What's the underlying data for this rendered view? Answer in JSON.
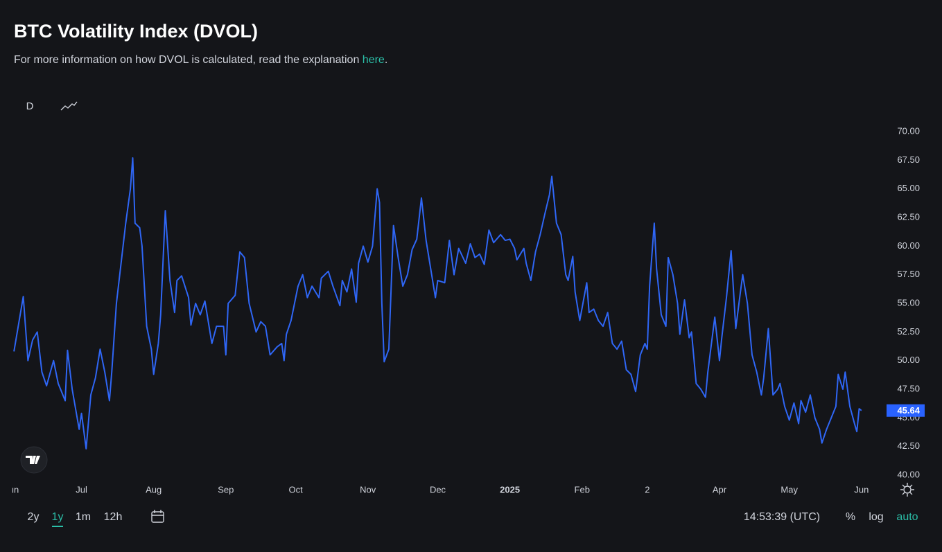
{
  "header": {
    "title": "BTC Volatility Index (DVOL)",
    "subtitle": "For more information on how DVOL is calculated, read the explanation",
    "link": "here",
    "end": "."
  },
  "toolbar": {
    "interval": "D"
  },
  "chart_data": {
    "type": "line",
    "color": "#2f66f5",
    "x": [
      1,
      5,
      7,
      9,
      11,
      13,
      15,
      18,
      20,
      23,
      24,
      26,
      29,
      30,
      32,
      34,
      36,
      38,
      40,
      42,
      43,
      45,
      47,
      49,
      51,
      52,
      53,
      55,
      56,
      58,
      60,
      61,
      63,
      64,
      66,
      68,
      70,
      71,
      73,
      76,
      77,
      79,
      81,
      83,
      86,
      88,
      91,
      92,
      93,
      96,
      98,
      100,
      102,
      105,
      107,
      109,
      111,
      114,
      116,
      117,
      118,
      120,
      123,
      125,
      127,
      129,
      132,
      133,
      136,
      138,
      141,
      142,
      144,
      146,
      148,
      149,
      151,
      153,
      155,
      157,
      158,
      159,
      160,
      162,
      164,
      166,
      168,
      170,
      172,
      174,
      176,
      178,
      180,
      182,
      183,
      186,
      188,
      190,
      192,
      195,
      197,
      199,
      201,
      203,
      205,
      207,
      210,
      212,
      214,
      216,
      217,
      220,
      221,
      223,
      225,
      227,
      229,
      231,
      232,
      234,
      236,
      238,
      239,
      241,
      242,
      244,
      247,
      248,
      250,
      252,
      254,
      256,
      258,
      260,
      262,
      264,
      266,
      268,
      270,
      272,
      273,
      274,
      276,
      277,
      279,
      281,
      282,
      284,
      286,
      287,
      289,
      291,
      292,
      294,
      296,
      298,
      299,
      302,
      304,
      305,
      307,
      309,
      311,
      313,
      314,
      316,
      318,
      320,
      322,
      323,
      325,
      327,
      329,
      330,
      332,
      334,
      336,
      338,
      339,
      341,
      343,
      345,
      347,
      348,
      350,
      352,
      354,
      355,
      357,
      358,
      360,
      362,
      363,
      364,
      365
    ],
    "values": [
      50.8,
      55.6,
      50.0,
      51.8,
      52.5,
      49.0,
      47.8,
      50.0,
      48.0,
      46.5,
      50.9,
      47.5,
      44.0,
      45.4,
      42.3,
      47.0,
      48.5,
      51.0,
      49.0,
      46.5,
      49.0,
      55.0,
      58.5,
      62.0,
      65.0,
      67.7,
      62.0,
      61.6,
      60.0,
      53.0,
      51.0,
      48.8,
      51.5,
      54.0,
      63.1,
      57.0,
      54.2,
      57.0,
      57.4,
      55.5,
      53.1,
      55.0,
      54.0,
      55.2,
      51.5,
      53.0,
      53.0,
      50.5,
      55.0,
      55.7,
      59.5,
      59.0,
      55.0,
      52.5,
      53.4,
      53.0,
      50.5,
      51.2,
      51.5,
      50.0,
      52.3,
      53.5,
      56.5,
      57.5,
      55.5,
      56.5,
      55.5,
      57.2,
      57.8,
      56.5,
      54.8,
      57.0,
      56.0,
      58.0,
      55.1,
      58.5,
      60.0,
      58.6,
      60.0,
      65.0,
      63.8,
      55.0,
      49.9,
      51.0,
      61.8,
      59.0,
      56.5,
      57.5,
      59.7,
      60.6,
      64.2,
      60.5,
      58.0,
      55.5,
      57.0,
      56.8,
      60.5,
      57.5,
      59.8,
      58.5,
      60.2,
      59.0,
      59.3,
      58.4,
      61.4,
      60.3,
      61.0,
      60.5,
      60.6,
      59.8,
      58.8,
      59.8,
      58.5,
      57.0,
      59.5,
      61.0,
      62.8,
      64.5,
      66.1,
      62.0,
      61.0,
      57.5,
      57.0,
      59.1,
      56.0,
      53.5,
      56.8,
      54.2,
      54.5,
      53.5,
      53.0,
      54.2,
      51.5,
      51.0,
      51.7,
      49.2,
      48.8,
      47.3,
      50.5,
      51.5,
      51.0,
      56.5,
      62.0,
      58.0,
      54.0,
      53.0,
      59.0,
      57.5,
      55.0,
      52.3,
      55.3,
      52.0,
      52.5,
      48.0,
      47.5,
      46.8,
      49.0,
      53.8,
      50.0,
      52.0,
      55.5,
      59.6,
      52.8,
      56.0,
      57.5,
      55.0,
      50.5,
      49.0,
      47.0,
      48.5,
      52.8,
      47.0,
      47.5,
      48.0,
      46.0,
      44.8,
      46.3,
      44.5,
      46.5,
      45.5,
      47.0,
      45.0,
      44.0,
      42.8,
      44.0,
      45.0,
      46.0,
      48.8,
      47.5,
      49.0,
      46.0,
      44.5,
      43.8,
      45.8,
      45.64
    ],
    "xlim": [
      -5,
      371
    ],
    "xticks": [
      {
        "value": 0,
        "label": "Jun"
      },
      {
        "value": 30,
        "label": "Jul"
      },
      {
        "value": 61,
        "label": "Aug"
      },
      {
        "value": 92,
        "label": "Sep"
      },
      {
        "value": 122,
        "label": "Oct"
      },
      {
        "value": 153,
        "label": "Nov"
      },
      {
        "value": 183,
        "label": "Dec"
      },
      {
        "value": 214,
        "label": "2025"
      },
      {
        "value": 245,
        "label": "Feb"
      },
      {
        "value": 273,
        "label": "2"
      },
      {
        "value": 304,
        "label": "Apr"
      },
      {
        "value": 334,
        "label": "May"
      },
      {
        "value": 365,
        "label": "Jun"
      }
    ],
    "ylim": [
      40,
      70
    ],
    "yticks": [
      {
        "value": 40,
        "label": "40.00"
      },
      {
        "value": 42.5,
        "label": "42.50"
      },
      {
        "value": 45,
        "label": "45.00"
      },
      {
        "value": 47.5,
        "label": "47.50"
      },
      {
        "value": 50,
        "label": "50.00"
      },
      {
        "value": 52.5,
        "label": "52.50"
      },
      {
        "value": 55,
        "label": "55.00"
      },
      {
        "value": 57.5,
        "label": "57.50"
      },
      {
        "value": 60,
        "label": "60.00"
      },
      {
        "value": 62.5,
        "label": "62.50"
      },
      {
        "value": 65,
        "label": "65.00"
      },
      {
        "value": 67.5,
        "label": "67.50"
      },
      {
        "value": 70,
        "label": "70.00"
      }
    ],
    "grid": false,
    "last_price": 45.64
  },
  "footer": {
    "ranges": [
      "2y",
      "1y",
      "1m",
      "12h"
    ],
    "active_range": 1,
    "time": "14:53:39 (UTC)",
    "percent": "%",
    "log": "log",
    "auto": "auto"
  }
}
